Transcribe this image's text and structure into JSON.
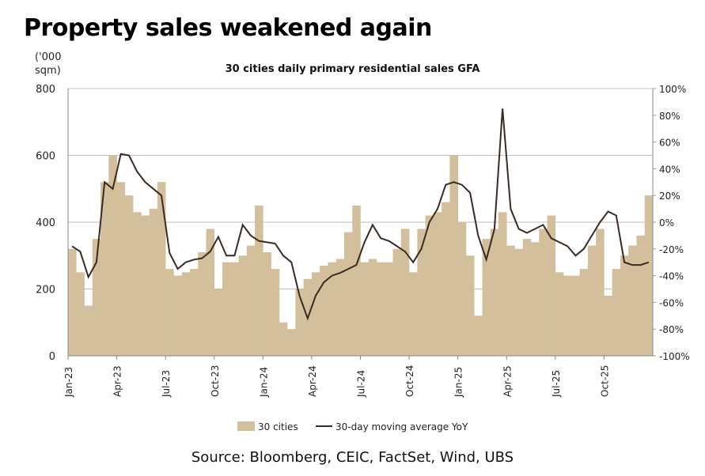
{
  "title": "Property sales weakened again",
  "source": "Source: Bloomberg, CEIC, FactSet, Wind, UBS",
  "chart_data": {
    "type": "bar",
    "title": "30 cities daily primary residential sales GFA",
    "ylabel": "('000 sqm)",
    "ylabel_lines": [
      "('000",
      "sqm)"
    ],
    "ylim": [
      0,
      800
    ],
    "yticks": [
      "0",
      "200",
      "400",
      "600",
      "800"
    ],
    "y2lim": [
      -100,
      100
    ],
    "y2ticks": [
      "-100%",
      "-80%",
      "-60%",
      "-40%",
      "-20%",
      "0%",
      "20%",
      "40%",
      "60%",
      "80%",
      "100%"
    ],
    "xticks": [
      "Jan-23",
      "Apr-23",
      "Jul-23",
      "Oct-23",
      "Jan-24",
      "Apr-24",
      "Jul-24",
      "Oct-24",
      "Jan-25",
      "Apr-25",
      "Jul-25",
      "Oct-25"
    ],
    "x_period": "half-month, Jan-2023 to Dec-2025",
    "grid": true,
    "legend": "bottom",
    "colors": {
      "bars": "#d3bf9b",
      "line": "#3b2a22",
      "grid": "#bdbdbd"
    },
    "series": [
      {
        "name": "30 cities",
        "type": "bar",
        "axis": "left",
        "values": [
          320,
          250,
          150,
          350,
          520,
          600,
          520,
          480,
          430,
          420,
          440,
          520,
          260,
          240,
          250,
          260,
          310,
          380,
          200,
          280,
          280,
          300,
          330,
          450,
          310,
          260,
          100,
          80,
          200,
          230,
          250,
          270,
          280,
          290,
          370,
          450,
          280,
          290,
          280,
          280,
          320,
          380,
          250,
          380,
          420,
          430,
          460,
          600,
          400,
          300,
          120,
          350,
          380,
          430,
          330,
          320,
          350,
          340,
          380,
          420,
          250,
          240,
          240,
          260,
          330,
          380,
          180,
          260,
          300,
          330,
          360,
          480
        ]
      },
      {
        "name": "30-day moving average YoY",
        "type": "line",
        "axis": "right",
        "unit": "%",
        "values": [
          -18,
          -22,
          -41,
          -30,
          30,
          25,
          51,
          50,
          38,
          30,
          25,
          20,
          -23,
          -35,
          -30,
          -28,
          -27,
          -22,
          -11,
          -25,
          -25,
          -2,
          -10,
          -14,
          -15,
          -16,
          -25,
          -30,
          -55,
          -72,
          -55,
          -45,
          -40,
          -38,
          -35,
          -32,
          -15,
          -2,
          -12,
          -14,
          -18,
          -22,
          -30,
          -20,
          0,
          10,
          28,
          30,
          28,
          22,
          -10,
          -28,
          -5,
          85,
          10,
          -5,
          -8,
          -5,
          -2,
          -12,
          -15,
          -18,
          -25,
          -20,
          -10,
          0,
          8,
          5,
          -30,
          -32,
          -32,
          -30
        ]
      }
    ]
  }
}
